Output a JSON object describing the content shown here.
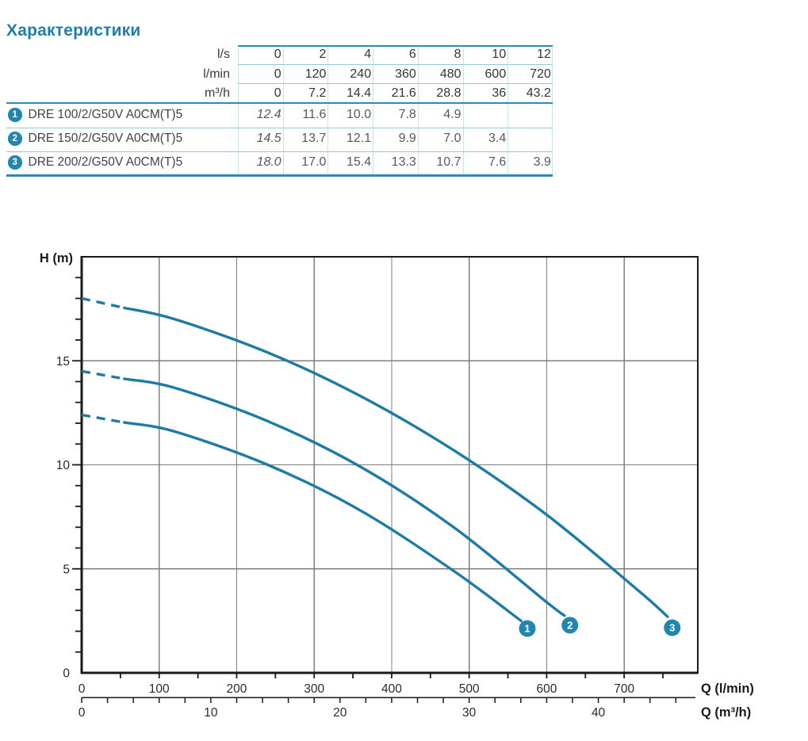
{
  "title": "Характеристики",
  "colors": {
    "accent": "#2287ae",
    "title_text": "#1f7fab",
    "table_line_thick": "#2e8ab0",
    "table_line_thin": "#94c7da",
    "curve": "#1e7ba4",
    "marker_fill": "#2287ae",
    "marker_text": "#ffffff",
    "grid": "#7f7f7f",
    "axis": "#1a1a1a",
    "tick_text": "#2b2b2b",
    "header_text": "#3a3a3c",
    "value_text": "#57585a"
  },
  "table": {
    "unit_rows": [
      {
        "label": "l/s",
        "values": [
          "0",
          "2",
          "4",
          "6",
          "8",
          "10",
          "12"
        ]
      },
      {
        "label": "l/min",
        "values": [
          "0",
          "120",
          "240",
          "360",
          "480",
          "600",
          "720"
        ]
      },
      {
        "label": "m³/h",
        "values": [
          "0",
          "7.2",
          "14.4",
          "21.6",
          "28.8",
          "36",
          "43.2"
        ]
      }
    ],
    "models": [
      {
        "index": "1",
        "name": "DRE 100/2/G50V A0CM(T)5",
        "values": [
          "12.4",
          "11.6",
          "10.0",
          "7.8",
          "4.9",
          "",
          ""
        ]
      },
      {
        "index": "2",
        "name": "DRE 150/2/G50V A0CM(T)5",
        "values": [
          "14.5",
          "13.7",
          "12.1",
          "9.9",
          "7.0",
          "3.4",
          ""
        ]
      },
      {
        "index": "3",
        "name": "DRE 200/2/G50V A0CM(T)5",
        "values": [
          "18.0",
          "17.0",
          "15.4",
          "13.3",
          "10.7",
          "7.6",
          "3.9"
        ]
      }
    ]
  },
  "chart_data": {
    "type": "line",
    "title": "",
    "ylabel": "H (m)",
    "xlabel_primary": "Q (l/min)",
    "xlabel_secondary": "Q (m³/h)",
    "x_range_lmin": [
      0,
      795
    ],
    "y_range_m": [
      0,
      20
    ],
    "x_major_ticks_lmin": [
      0,
      100,
      200,
      300,
      400,
      500,
      600,
      700
    ],
    "x_minor_step_lmin": 50,
    "y_major_ticks_m": [
      0,
      5,
      10,
      15
    ],
    "y_minor_step_m": 1,
    "grid_x_step_lmin": 100,
    "grid_y_step_m": 5,
    "secondary_labels_m3h": [
      0,
      10,
      20,
      30,
      40
    ],
    "secondary_minor_step_m3h": 2,
    "secondary_max_m3h": 46,
    "lmin_per_m3h": 16.6667,
    "dash_until_lmin": 55,
    "series": [
      {
        "id": "1",
        "name": "DRE 100/2/G50V A0CM(T)5",
        "points": [
          [
            0,
            12.4
          ],
          [
            120,
            11.6
          ],
          [
            240,
            10.0
          ],
          [
            360,
            7.8
          ],
          [
            480,
            4.9
          ],
          [
            567,
            2.5
          ]
        ],
        "marker": {
          "q": 575,
          "h": 2.13,
          "label": "1"
        }
      },
      {
        "id": "2",
        "name": "DRE 150/2/G50V A0CM(T)5",
        "points": [
          [
            0,
            14.5
          ],
          [
            120,
            13.7
          ],
          [
            240,
            12.1
          ],
          [
            360,
            9.9
          ],
          [
            480,
            7.0
          ],
          [
            600,
            3.4
          ],
          [
            623,
            2.75
          ]
        ],
        "marker": {
          "q": 630,
          "h": 2.29,
          "label": "2"
        }
      },
      {
        "id": "3",
        "name": "DRE 200/2/G50V A0CM(T)5",
        "points": [
          [
            0,
            18.0
          ],
          [
            120,
            17.0
          ],
          [
            240,
            15.4
          ],
          [
            360,
            13.3
          ],
          [
            480,
            10.7
          ],
          [
            600,
            7.6
          ],
          [
            720,
            3.9
          ],
          [
            756,
            2.7
          ]
        ],
        "marker": {
          "q": 762,
          "h": 2.17,
          "label": "3"
        }
      }
    ]
  }
}
